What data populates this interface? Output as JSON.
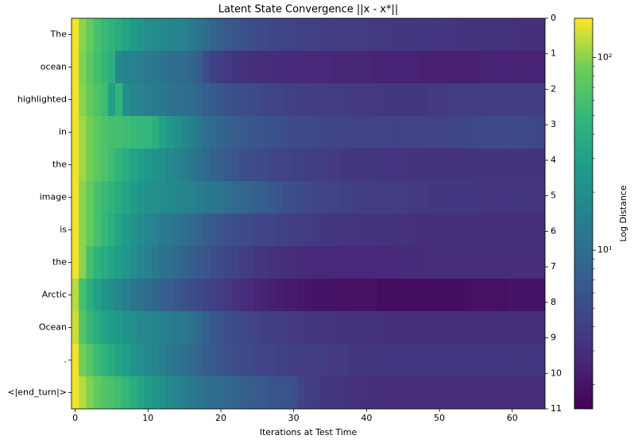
{
  "chart_data": {
    "type": "heatmap",
    "title": "Latent State Convergence ||x - x*||",
    "xlabel": "Iterations at Test Time",
    "x": [
      0,
      1,
      2,
      3,
      4,
      5,
      6,
      7,
      8,
      9,
      10,
      11,
      12,
      13,
      14,
      15,
      16,
      17,
      18,
      19,
      20,
      21,
      22,
      23,
      24,
      25,
      26,
      27,
      28,
      29,
      30,
      31,
      32,
      33,
      34,
      35,
      36,
      37,
      38,
      39,
      40,
      41,
      42,
      43,
      44,
      45,
      46,
      47,
      48,
      49,
      50,
      51,
      52,
      53,
      54,
      55,
      56,
      57,
      58,
      59,
      60,
      61,
      62,
      63,
      64
    ],
    "xlim": [
      -0.5,
      64.5
    ],
    "xticks": [
      0,
      10,
      20,
      30,
      40,
      50,
      60
    ],
    "categories": [
      "The",
      "ocean",
      "highlighted",
      "in",
      "the",
      "image",
      "is",
      "the",
      "Arctic",
      "Ocean",
      ".",
      "<|end_turn|>"
    ],
    "y2lim": [
      0,
      11
    ],
    "y2ticks": [
      0,
      1,
      2,
      3,
      4,
      5,
      6,
      7,
      8,
      9,
      10,
      11
    ],
    "y2_inverted": true,
    "colormap": "viridis",
    "colorbar": {
      "label": "Log Distance",
      "scale": "log",
      "clim": [
        1.5,
        160
      ],
      "ticks": [
        {
          "value": 10,
          "label": "10¹"
        },
        {
          "value": 100,
          "label": "10²"
        }
      ],
      "minor_ticks": [
        2,
        3,
        4,
        5,
        6,
        7,
        8,
        9,
        20,
        30,
        40,
        50,
        60,
        70,
        80,
        90
      ]
    },
    "values": [
      [
        150,
        100,
        80,
        62,
        52,
        44,
        38,
        32,
        27,
        23,
        20,
        19,
        18,
        17,
        16,
        15,
        13,
        11,
        9.5,
        8.2,
        7.2,
        6.5,
        6,
        5.6,
        5.3,
        5,
        4.8,
        4.6,
        4.5,
        4.4,
        4.3,
        4.2,
        4.2,
        4.1,
        4,
        4,
        3.9,
        3.9,
        3.8,
        3.8,
        3.8,
        3.7,
        3.7,
        3.7,
        3.6,
        3.6,
        3.6,
        3.5,
        3.5,
        3.5,
        3.4,
        3.4,
        3.4,
        3.3,
        3.3,
        3.3,
        3.3,
        3.2,
        3.2,
        3.2,
        3.2,
        3.1,
        3.1,
        3.1,
        3.1
      ],
      [
        150,
        95,
        75,
        60,
        48,
        40,
        18,
        16,
        15,
        14,
        13,
        12,
        11,
        10,
        9.5,
        9,
        8.5,
        7,
        5,
        4.2,
        3.8,
        3.5,
        3.3,
        3.2,
        3.1,
        3,
        3,
        2.9,
        2.9,
        2.8,
        2.8,
        2.8,
        2.7,
        2.7,
        2.7,
        2.7,
        2.6,
        2.6,
        2.6,
        2.6,
        2.6,
        2.5,
        2.5,
        2.5,
        2.5,
        2.5,
        2.5,
        2.5,
        2.4,
        2.4,
        2.4,
        2.4,
        2.4,
        2.4,
        2.4,
        2.4,
        2.5,
        2.5,
        2.5,
        2.5,
        2.5,
        2.5,
        2.5,
        2.5,
        2.5
      ],
      [
        150,
        100,
        80,
        65,
        55,
        30,
        45,
        20,
        17,
        15,
        14,
        13,
        12,
        11,
        10.5,
        10,
        9.5,
        8.5,
        7.5,
        6.8,
        6.2,
        5.8,
        5.5,
        5.2,
        5,
        4.8,
        4.6,
        4.4,
        4.3,
        4.2,
        4.1,
        4,
        4,
        3.9,
        3.9,
        3.8,
        3.8,
        3.8,
        3.7,
        3.7,
        3.7,
        3.7,
        3.6,
        3.6,
        3.6,
        3.6,
        3.6,
        3.6,
        3.6,
        3.7,
        3.7,
        3.7,
        3.8,
        3.8,
        3.8,
        3.9,
        3.9,
        4,
        4,
        4,
        4,
        4,
        4,
        4,
        4
      ],
      [
        150,
        110,
        90,
        75,
        65,
        60,
        58,
        55,
        52,
        50,
        48,
        40,
        30,
        25,
        21,
        18,
        15,
        12,
        10,
        9,
        8,
        7.5,
        7,
        6.5,
        6.2,
        6,
        5.8,
        5.6,
        5.4,
        5.2,
        5,
        4.9,
        4.8,
        4.7,
        4.6,
        4.5,
        4.5,
        4.4,
        4.4,
        4.4,
        4.3,
        4.3,
        4.3,
        4.3,
        4.3,
        4.3,
        4.3,
        4.3,
        4.4,
        4.4,
        4.4,
        4.5,
        4.5,
        4.6,
        4.6,
        4.7,
        4.8,
        4.8,
        4.9,
        5,
        5,
        4.9,
        4.8,
        4.7,
        4.6
      ],
      [
        150,
        110,
        90,
        75,
        65,
        55,
        45,
        38,
        32,
        28,
        25,
        22,
        20,
        18,
        16,
        14,
        12,
        10,
        9,
        8,
        7,
        6.5,
        6,
        5.5,
        5.2,
        5,
        4.8,
        4.6,
        4.4,
        4.3,
        4.2,
        4.1,
        4,
        3.9,
        3.8,
        3.7,
        3.7,
        3.6,
        3.6,
        3.5,
        3.5,
        3.5,
        3.4,
        3.4,
        3.4,
        3.4,
        3.3,
        3.3,
        3.3,
        3.3,
        3.3,
        3.3,
        3.3,
        3.3,
        3.3,
        3.3,
        3.3,
        3.3,
        3.3,
        3.3,
        3.3,
        3.3,
        3.3,
        3.3,
        3.3
      ],
      [
        150,
        100,
        80,
        62,
        52,
        44,
        38,
        32,
        27,
        23,
        21,
        20,
        19,
        18,
        17,
        16,
        15,
        14,
        13,
        12,
        11,
        10,
        9,
        8.5,
        8,
        7.5,
        7,
        6.5,
        6,
        5.5,
        5.2,
        5,
        4.8,
        4.6,
        4.5,
        4.4,
        4.3,
        4.2,
        4.1,
        4,
        4,
        3.9,
        3.9,
        3.8,
        3.8,
        3.8,
        3.7,
        3.7,
        3.7,
        3.6,
        3.6,
        3.6,
        3.5,
        3.5,
        3.5,
        3.5,
        3.4,
        3.4,
        3.4,
        3.4,
        3.4,
        3.4,
        3.4,
        3.4,
        3.4
      ],
      [
        150,
        100,
        80,
        62,
        50,
        40,
        32,
        26,
        22,
        19,
        17,
        15,
        13,
        12,
        11,
        10,
        9,
        8,
        7,
        6.5,
        6,
        5.5,
        5.2,
        5,
        4.8,
        4.6,
        4.4,
        4.3,
        4.2,
        4.1,
        4,
        3.9,
        3.8,
        3.7,
        3.6,
        3.5,
        3.5,
        3.4,
        3.4,
        3.3,
        3.3,
        3.3,
        3.2,
        3.2,
        3.2,
        3.2,
        3.2,
        3.1,
        3.1,
        3.1,
        3.1,
        3.1,
        3.1,
        3.1,
        3.1,
        3.1,
        3.1,
        3.1,
        3.1,
        3.1,
        3.1,
        3.1,
        3.1,
        3.1,
        3.1
      ],
      [
        150,
        100,
        60,
        45,
        38,
        32,
        27,
        23,
        20,
        17,
        15,
        13,
        11,
        10,
        9,
        8,
        7.2,
        6.5,
        6,
        5.5,
        5,
        4.6,
        4.3,
        4,
        3.8,
        3.6,
        3.4,
        3.2,
        3.1,
        3,
        2.9,
        2.8,
        2.8,
        2.7,
        2.7,
        2.7,
        2.7,
        2.7,
        2.7,
        2.7,
        2.7,
        2.8,
        2.8,
        2.8,
        2.8,
        2.9,
        2.9,
        2.9,
        2.9,
        3,
        3,
        3,
        3,
        3,
        3,
        3,
        3,
        3,
        3,
        3,
        3,
        3,
        3,
        3,
        3
      ],
      [
        120,
        60,
        40,
        30,
        24,
        20,
        17,
        14,
        12,
        10.5,
        9.5,
        8.5,
        7.5,
        6.8,
        6.2,
        5.6,
        5.2,
        4.8,
        4.4,
        4.1,
        3.8,
        3.5,
        3.2,
        3,
        2.8,
        2.6,
        2.5,
        2.4,
        2.3,
        2.2,
        2.2,
        2.1,
        2.1,
        2,
        2,
        2,
        1.9,
        1.9,
        1.9,
        1.9,
        1.9,
        1.9,
        1.8,
        1.8,
        1.8,
        1.8,
        1.8,
        1.8,
        1.8,
        1.8,
        1.8,
        1.8,
        1.8,
        1.8,
        1.9,
        1.9,
        1.9,
        1.9,
        1.9,
        1.9,
        2,
        2,
        2,
        2,
        2
      ],
      [
        130,
        70,
        50,
        38,
        32,
        28,
        25,
        22,
        20,
        18,
        17,
        16,
        15,
        14,
        13,
        12,
        11,
        9,
        7.5,
        6.5,
        5.8,
        5.3,
        5,
        4.7,
        4.5,
        4.3,
        4.1,
        4,
        3.9,
        3.8,
        3.7,
        3.6,
        3.5,
        3.5,
        3.4,
        3.4,
        3.3,
        3.3,
        3.3,
        3.2,
        3.2,
        3.2,
        3.2,
        3.1,
        3.1,
        3.1,
        3.1,
        3.1,
        3.1,
        3.1,
        3.1,
        3.1,
        3.1,
        3.1,
        3.1,
        3.1,
        3.1,
        3.1,
        3.1,
        3.1,
        3.1,
        3.1,
        3.1,
        3.1,
        3.1
      ],
      [
        150,
        90,
        70,
        55,
        45,
        38,
        32,
        27,
        23,
        20,
        18,
        16,
        14,
        12,
        11,
        10,
        9,
        8,
        7.2,
        6.5,
        6,
        5.6,
        5.3,
        5,
        4.8,
        4.6,
        4.4,
        4.3,
        4.2,
        4.1,
        4,
        3.9,
        3.9,
        3.8,
        3.8,
        3.7,
        3.7,
        3.7,
        3.6,
        3.6,
        3.6,
        3.6,
        3.5,
        3.5,
        3.5,
        3.5,
        3.5,
        3.5,
        3.5,
        3.5,
        3.5,
        3.5,
        3.5,
        3.5,
        3.5,
        3.5,
        3.5,
        3.5,
        3.5,
        3.5,
        3.5,
        3.5,
        3.5,
        3.5,
        3.5
      ],
      [
        150,
        120,
        95,
        80,
        70,
        62,
        55,
        48,
        40,
        33,
        28,
        24,
        21,
        18,
        16,
        14,
        12,
        11,
        10,
        9.5,
        9,
        8.5,
        8,
        7.5,
        7,
        6.8,
        6.5,
        6.2,
        6,
        5.8,
        5.5,
        4.5,
        4,
        3.8,
        3.6,
        3.5,
        3.4,
        3.3,
        3.2,
        3.2,
        3.1,
        3.1,
        3.1,
        3,
        3,
        3,
        3,
        3,
        3,
        3,
        3,
        3,
        3,
        3,
        3,
        3,
        3,
        3,
        3,
        3,
        3,
        3,
        3,
        3,
        3
      ]
    ]
  }
}
